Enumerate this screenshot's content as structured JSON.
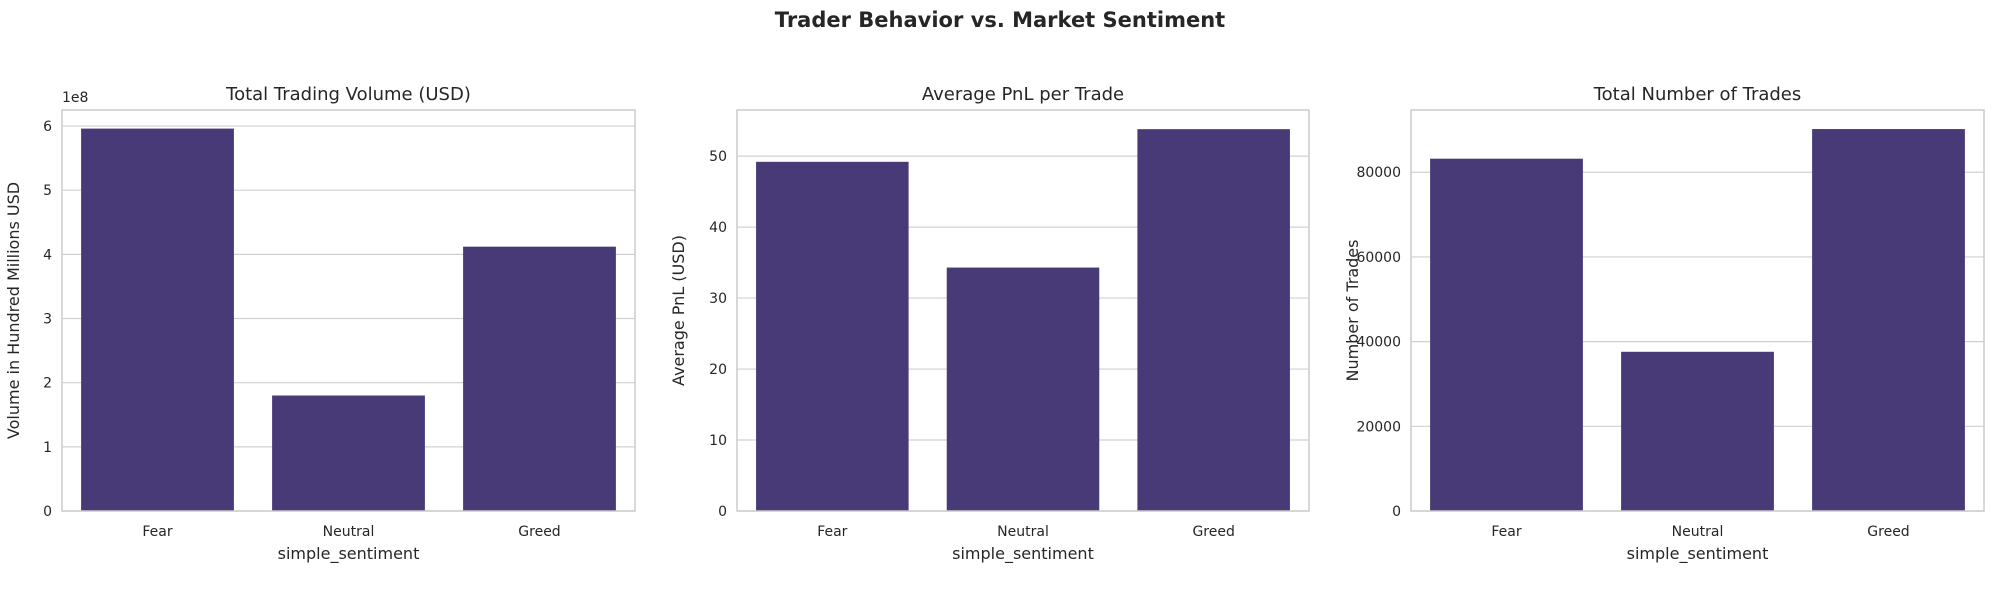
{
  "suptitle": "Trader Behavior vs. Market Sentiment",
  "colors": {
    "bar": "#483a76",
    "grid": "#d0d0d0",
    "spine": "#cccccc"
  },
  "chart_data": [
    {
      "type": "bar",
      "title": "Total Trading Volume (USD)",
      "xlabel": "simple_sentiment",
      "ylabel": "Volume in Hundred Millions USD",
      "categories": [
        "Fear",
        "Neutral",
        "Greed"
      ],
      "values": [
        596,
        180,
        412
      ],
      "ylim": [
        0,
        625
      ],
      "yticks": [
        0,
        100,
        200,
        300,
        400,
        500,
        600
      ],
      "ytick_labels": [
        "0",
        "1",
        "2",
        "3",
        "4",
        "5",
        "6"
      ],
      "offset_label": "1e8",
      "grid": true
    },
    {
      "type": "bar",
      "title": "Average PnL per Trade",
      "xlabel": "simple_sentiment",
      "ylabel": "Average PnL (USD)",
      "categories": [
        "Fear",
        "Neutral",
        "Greed"
      ],
      "values": [
        49.2,
        34.3,
        53.8
      ],
      "ylim": [
        0,
        56.5
      ],
      "yticks": [
        0,
        10,
        20,
        30,
        40,
        50
      ],
      "ytick_labels": [
        "0",
        "10",
        "20",
        "30",
        "40",
        "50"
      ],
      "grid": true
    },
    {
      "type": "bar",
      "title": "Total Number of Trades",
      "xlabel": "simple_sentiment",
      "ylabel": "Number of Trades",
      "categories": [
        "Fear",
        "Neutral",
        "Greed"
      ],
      "values": [
        83200,
        37600,
        90200
      ],
      "ylim": [
        0,
        94700
      ],
      "yticks": [
        0,
        20000,
        40000,
        60000,
        80000
      ],
      "ytick_labels": [
        "0",
        "20000",
        "40000",
        "60000",
        "80000"
      ],
      "grid": true
    }
  ]
}
